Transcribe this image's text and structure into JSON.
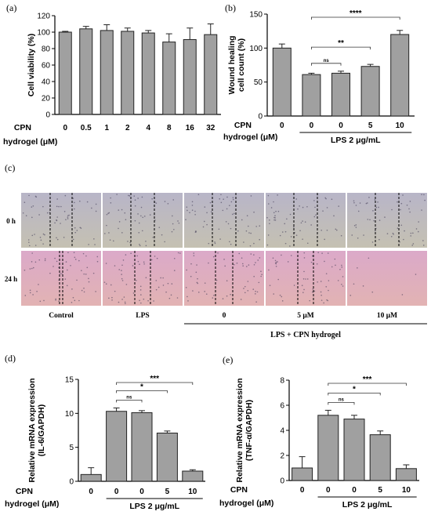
{
  "chart_data": [
    {
      "panel_label": "(a)",
      "type": "bar",
      "ylabel": "Cell viability (%)",
      "ylim": [
        0,
        120
      ],
      "yticks": [
        "0",
        "20",
        "40",
        "60",
        "80",
        "100",
        "120"
      ],
      "row_label_1": "CPN",
      "row_label_2": "hydrogel (μM)",
      "categories": [
        "0",
        "0.5",
        "1",
        "2",
        "4",
        "8",
        "16",
        "32"
      ],
      "values": [
        100,
        104,
        102,
        101,
        99,
        88,
        91,
        97
      ],
      "errors": [
        1,
        3,
        7,
        4,
        3,
        10,
        14,
        13
      ],
      "bar_color": "#a0a0a0"
    },
    {
      "panel_label": "(b)",
      "type": "bar",
      "ylabel": "Wound healing cell count (%)",
      "ylabel_lines": [
        "Wound healing",
        "cell count (%)"
      ],
      "ylim": [
        0,
        150
      ],
      "yticks": [
        "0",
        "50",
        "100",
        "150"
      ],
      "row_label_1": "CPN",
      "row_label_2": "hydrogel (μM)",
      "categories": [
        "0",
        "0",
        "0",
        "5",
        "10"
      ],
      "values": [
        100,
        61,
        63,
        73,
        120
      ],
      "errors": [
        6,
        2,
        3,
        3,
        6
      ],
      "group_label": "LPS 2 μg/mL",
      "group_span": [
        1,
        4
      ],
      "significance": [
        {
          "from": 1,
          "to": 2,
          "label": "ns"
        },
        {
          "from": 1,
          "to": 3,
          "label": "**"
        },
        {
          "from": 1,
          "to": 4,
          "label": "****"
        }
      ],
      "bar_color": "#a0a0a0"
    },
    {
      "panel_label": "(d)",
      "type": "bar",
      "ylabel": "Relative mRNA expression (IL-6/GAPDH)",
      "ylabel_lines": [
        "Relative mRNA expression",
        "(IL-6/GAPDH)"
      ],
      "ylim": [
        0,
        15
      ],
      "yticks": [
        "0",
        "5",
        "10",
        "15"
      ],
      "row_label_1": "CPN",
      "row_label_2": "hydrogel (μM)",
      "categories": [
        "0",
        "0",
        "0",
        "5",
        "10"
      ],
      "values": [
        1.0,
        10.3,
        10.1,
        7.1,
        1.5
      ],
      "errors": [
        1.0,
        0.5,
        0.3,
        0.3,
        0.2
      ],
      "group_label": "LPS 2 μg/mL",
      "group_span": [
        1,
        4
      ],
      "significance": [
        {
          "from": 1,
          "to": 2,
          "label": "ns"
        },
        {
          "from": 1,
          "to": 3,
          "label": "*"
        },
        {
          "from": 1,
          "to": 4,
          "label": "***"
        }
      ],
      "bar_color": "#a0a0a0"
    },
    {
      "panel_label": "(e)",
      "type": "bar",
      "ylabel": "Relative mRNA expression (TNF-α/GAPDH)",
      "ylabel_lines": [
        "Relative mRNA expression",
        "(TNF-α/GAPDH)"
      ],
      "ylim": [
        0,
        8
      ],
      "yticks": [
        "0",
        "2",
        "4",
        "6",
        "8"
      ],
      "row_label_1": "CPN",
      "row_label_2": "hydrogel (μM)",
      "categories": [
        "0",
        "0",
        "0",
        "5",
        "10"
      ],
      "values": [
        1.0,
        5.2,
        4.9,
        3.65,
        0.95
      ],
      "errors": [
        0.9,
        0.4,
        0.3,
        0.3,
        0.3
      ],
      "group_label": "LPS 2 μg/mL",
      "group_span": [
        1,
        4
      ],
      "significance": [
        {
          "from": 1,
          "to": 2,
          "label": "ns"
        },
        {
          "from": 1,
          "to": 3,
          "label": "*"
        },
        {
          "from": 1,
          "to": 4,
          "label": "***"
        }
      ],
      "bar_color": "#a0a0a0"
    }
  ],
  "micrograph": {
    "panel_label": "(c)",
    "row_labels": [
      "0 h",
      "24 h"
    ],
    "column_labels": [
      "Control",
      "LPS",
      "0",
      "5 μM",
      "10 μM"
    ],
    "group_label": "LPS + CPN hydrogel",
    "colors": {
      "row_0h": [
        "#b8b5c8",
        "#c5c1b2"
      ],
      "row_24h": [
        "#dba9c9",
        "#e2b3b3"
      ],
      "cells": "#3a3550"
    }
  }
}
